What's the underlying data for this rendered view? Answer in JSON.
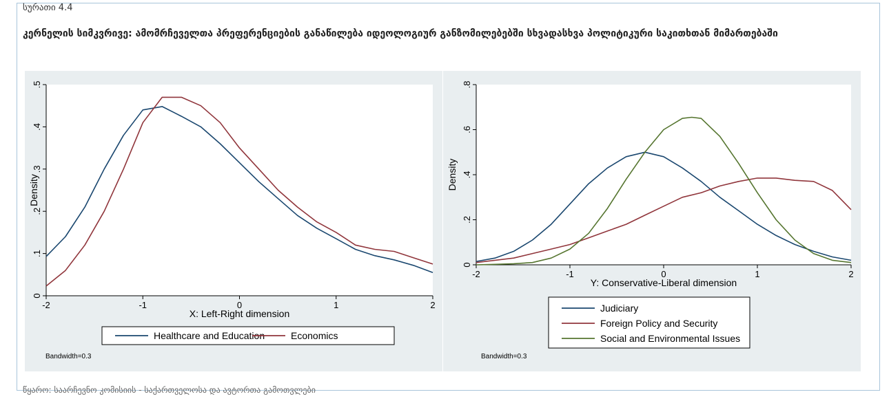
{
  "figure": {
    "label": "სურათი 4.4",
    "title": "კერნელის სიმკვრივე: ამომრჩეველთა პრეფერენციების განაწილება იდეოლოგიურ განზომილებებში სხვადასხვა პოლიტიკური საკითხთან მიმართებაში",
    "source": "წყარო: საარჩევნო კომისიის - საქართველოსა და ავტორთა გამოთვლები"
  },
  "colors": {
    "blue": "#1a476f",
    "red": "#90353b",
    "green": "#55752f",
    "panel_bg": "#e9eef0",
    "frame": "#a8c4da"
  },
  "chart_data": [
    {
      "type": "line",
      "xlabel": "X: Left-Right dimension",
      "ylabel": "Density",
      "xlim": [
        -2,
        2
      ],
      "ylim": [
        0,
        0.5
      ],
      "xticks": [
        "-2",
        "-1",
        "0",
        "1",
        "2"
      ],
      "yticks": [
        "0",
        ".1",
        ".2",
        ".3",
        ".4",
        ".5"
      ],
      "legend_position": "bottom",
      "note": "Bandwidth=0.3",
      "series": [
        {
          "name": "Healthcare and Education",
          "color": "#1a476f",
          "x": [
            -2,
            -1.8,
            -1.6,
            -1.4,
            -1.2,
            -1.0,
            -0.8,
            -0.6,
            -0.4,
            -0.2,
            0,
            0.2,
            0.4,
            0.6,
            0.8,
            1.0,
            1.2,
            1.4,
            1.6,
            1.8,
            2.0
          ],
          "y": [
            0.093,
            0.14,
            0.21,
            0.3,
            0.38,
            0.44,
            0.448,
            0.425,
            0.4,
            0.36,
            0.315,
            0.27,
            0.23,
            0.19,
            0.16,
            0.135,
            0.11,
            0.095,
            0.085,
            0.072,
            0.055
          ]
        },
        {
          "name": "Economics",
          "color": "#90353b",
          "x": [
            -2,
            -1.8,
            -1.6,
            -1.4,
            -1.2,
            -1.0,
            -0.8,
            -0.6,
            -0.4,
            -0.2,
            0,
            0.2,
            0.4,
            0.6,
            0.8,
            1.0,
            1.2,
            1.4,
            1.6,
            1.8,
            2.0
          ],
          "y": [
            0.023,
            0.06,
            0.12,
            0.2,
            0.3,
            0.41,
            0.47,
            0.47,
            0.45,
            0.41,
            0.35,
            0.3,
            0.25,
            0.21,
            0.175,
            0.15,
            0.12,
            0.11,
            0.105,
            0.09,
            0.075
          ]
        }
      ]
    },
    {
      "type": "line",
      "xlabel": "Y: Conservative-Liberal dimension",
      "ylabel": "Density",
      "xlim": [
        -2,
        2
      ],
      "ylim": [
        0,
        0.8
      ],
      "xticks": [
        "-2",
        "-1",
        "0",
        "1",
        "2"
      ],
      "yticks": [
        "0",
        ".2",
        ".4",
        ".6",
        ".8"
      ],
      "legend_position": "bottom",
      "note": "Bandwidth=0.3",
      "series": [
        {
          "name": "Judiciary",
          "color": "#1a476f",
          "x": [
            -2,
            -1.8,
            -1.6,
            -1.4,
            -1.2,
            -1.0,
            -0.8,
            -0.6,
            -0.4,
            -0.2,
            0,
            0.2,
            0.4,
            0.6,
            0.8,
            1.0,
            1.2,
            1.4,
            1.6,
            1.8,
            2.0
          ],
          "y": [
            0.015,
            0.03,
            0.06,
            0.11,
            0.18,
            0.27,
            0.36,
            0.43,
            0.48,
            0.5,
            0.48,
            0.43,
            0.37,
            0.3,
            0.24,
            0.18,
            0.13,
            0.09,
            0.06,
            0.035,
            0.02
          ]
        },
        {
          "name": "Foreign Policy and Security",
          "color": "#90353b",
          "x": [
            -2,
            -1.8,
            -1.6,
            -1.4,
            -1.2,
            -1.0,
            -0.8,
            -0.6,
            -0.4,
            -0.2,
            0,
            0.2,
            0.4,
            0.6,
            0.8,
            1.0,
            1.2,
            1.4,
            1.6,
            1.8,
            2.0
          ],
          "y": [
            0.01,
            0.02,
            0.03,
            0.05,
            0.07,
            0.09,
            0.12,
            0.15,
            0.18,
            0.22,
            0.26,
            0.3,
            0.32,
            0.35,
            0.37,
            0.385,
            0.385,
            0.375,
            0.37,
            0.33,
            0.245
          ]
        },
        {
          "name": "Social and Environmental Issues",
          "color": "#55752f",
          "x": [
            -2,
            -1.8,
            -1.6,
            -1.4,
            -1.2,
            -1.0,
            -0.8,
            -0.6,
            -0.4,
            -0.2,
            0,
            0.2,
            0.3,
            0.4,
            0.6,
            0.8,
            1.0,
            1.2,
            1.4,
            1.6,
            1.8,
            2.0
          ],
          "y": [
            0.0,
            0.002,
            0.005,
            0.01,
            0.03,
            0.07,
            0.14,
            0.25,
            0.38,
            0.5,
            0.6,
            0.65,
            0.655,
            0.65,
            0.57,
            0.45,
            0.32,
            0.2,
            0.11,
            0.05,
            0.02,
            0.01
          ]
        }
      ]
    }
  ]
}
